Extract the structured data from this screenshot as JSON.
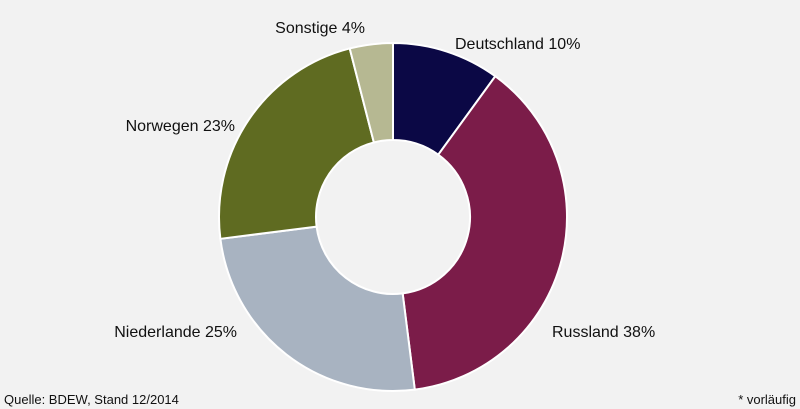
{
  "chart_data": {
    "type": "pie",
    "slices": [
      {
        "label": "Deutschland",
        "value": 10,
        "display": "Deutschland 10%",
        "color": "#0b0845"
      },
      {
        "label": "Russland",
        "value": 38,
        "display": "Russland 38%",
        "color": "#7b1c49"
      },
      {
        "label": "Niederlande",
        "value": 25,
        "display": "Niederlande 25%",
        "color": "#a8b3c1"
      },
      {
        "label": "Norwegen",
        "value": 23,
        "display": "Norwegen 23%",
        "color": "#5f6b21"
      },
      {
        "label": "Sonstige",
        "value": 4,
        "display": "Sonstige 4%",
        "color": "#b6b892"
      }
    ],
    "donut": true,
    "start": "12 o'clock",
    "direction": "clockwise"
  },
  "footer": {
    "source": "Quelle: BDEW, Stand 12/2014",
    "note": "* vorläufig"
  }
}
